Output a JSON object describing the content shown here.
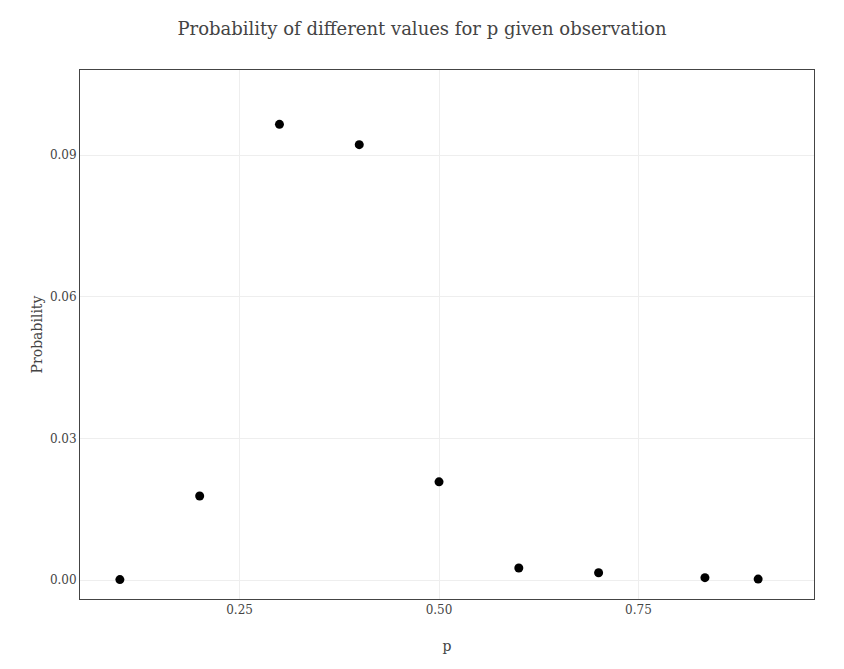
{
  "chart_data": {
    "type": "scatter",
    "title": "Probability of different values for p given observation",
    "xlabel": "p",
    "ylabel": "Probability",
    "x": [
      0.1,
      0.2,
      0.3,
      0.4,
      0.5,
      0.6,
      0.7,
      0.8333,
      0.9
    ],
    "values": [
      0.00011,
      0.0178,
      0.0965,
      0.0922,
      0.0208,
      0.00256,
      0.00155,
      0.00052,
      0.00022
    ],
    "color": "#000000",
    "xlim": [
      0.05,
      0.97
    ],
    "ylim": [
      -0.004,
      0.108
    ],
    "xticks": [
      0.25,
      {
        "value": 0.5,
        "label": "0.50"
      },
      0.75
    ],
    "yticks": [
      {
        "value": 0,
        "label": "0.00"
      },
      0.03,
      0.06,
      0.09
    ],
    "grid": true
  }
}
